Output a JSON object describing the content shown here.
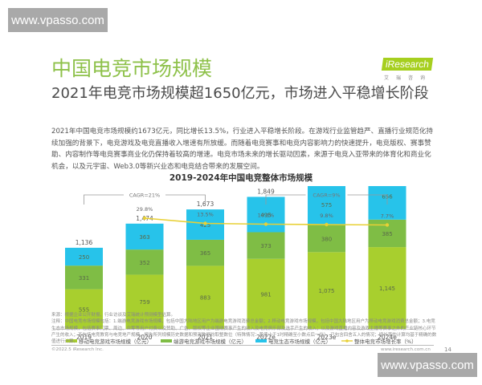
{
  "watermark": {
    "text": "www.vpasso.com"
  },
  "header": {
    "title": "中国电竞市场规模",
    "subtitle": "2021年电竞市场规模超1650亿元，市场进入平稳增长阶段",
    "logo_text": "iResearch",
    "logo_sub": "艾瑞咨询"
  },
  "body": {
    "paragraph": "2021年中国电竞市场规模约1673亿元，同比增长13.5%，行业进入平稳增长阶段。在游戏行业监管趋严、直播行业规范化持续加强的背景下，电竞游戏及电竞直播收入增速有所放缓。而随着电竞赛事和电竞内容影响力的快速提升，电竞版权、赛事赞助、内容制作等电竞赛事商业化仍保持着较高的增速。电竞市场未来的增长驱动因素，来源于电竞入亚带来的体育化和商业化机会，以及元宇宙、Web3.0等新兴业态和电竞结合带来的发展空间。"
  },
  "footer": {
    "source": "来源：根据企业公开财报、行业访谈及艾瑞统计预测模型估算。",
    "note": "注释：中国电竞市场规模包括：1.端游电竞游戏市场规模，包括中国大陆地区用户为端游电竞游戏消费总金额；2.移动电竞游戏市场规模，包括中国大陆地区用户为移动电竞游戏消费总金额；3.电竞生态市场规模，包括赛事门票、周边、众筹等用户付费以及赞助、广告、版权等企业围绕赛事产生的收入及电竞俱乐部及选手产生的收入；以及游戏直播内容及游戏主播等赛事之外的产业链核心环节产生的收入；不包括电竞教育与电竞地产规模。报告所列规模历史数据和预测数据均取整数位（特殊情况：差值小于1时精确至小数点后一位），已包含四舍五入的情况；增长率的计算均基于精确的数值进行计算。",
    "copyright": "©2022.5 iResearch Inc.",
    "site": "www.iresearch.com.cn",
    "page": "14"
  },
  "colors": {
    "mobile": "#a8cf2e",
    "pc": "#7fbd45",
    "ecosystem": "#27c3ea",
    "growth": "#e8d035",
    "title_green": "#8ec14a"
  },
  "chart_data": {
    "type": "bar",
    "stacked": true,
    "title": "2019-2024年中国电竞整体市场规模",
    "categories": [
      "2019",
      "2020",
      "2021",
      "2022e",
      "2023e",
      "2024e"
    ],
    "series": [
      {
        "name": "移动电竞游戏市场规模（亿元）",
        "values": [
          555,
          759,
          883,
          981,
          1075,
          1145
        ]
      },
      {
        "name": "端游电竞游戏市场规模（亿元）",
        "values": [
          331,
          352,
          365,
          373,
          380,
          385
        ]
      },
      {
        "name": "电竞生态市场规模（亿元）",
        "values": [
          250,
          363,
          425,
          495,
          575,
          656
        ]
      }
    ],
    "totals": [
      1136,
      1474,
      1673,
      1849,
      2030,
      2186
    ],
    "line_series": {
      "name": "整体电竞市场增长率（%）",
      "values": [
        null,
        29.8,
        13.5,
        10.5,
        9.8,
        7.7
      ]
    },
    "annotations": [
      {
        "text": "CAGR=21%",
        "from": "2019",
        "to": "2021"
      },
      {
        "text": "CAGR=9%",
        "from": "2022e",
        "to": "2024e"
      }
    ],
    "xlabel": "",
    "ylabel": "",
    "legend_position": "bottom",
    "grid": false
  }
}
